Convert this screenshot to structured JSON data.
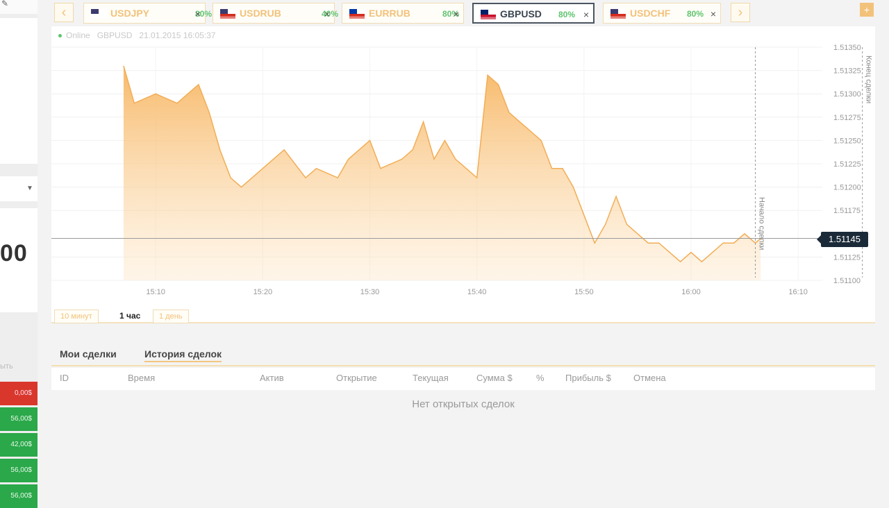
{
  "sidebar": {
    "amount": "00",
    "label": "ыть",
    "rows": [
      {
        "text": "0,00$",
        "color": "red"
      },
      {
        "text": "56,00$",
        "color": "green"
      },
      {
        "text": "42,00$",
        "color": "green"
      },
      {
        "text": "56,00$",
        "color": "green"
      },
      {
        "text": "56,00$",
        "color": "green"
      }
    ]
  },
  "tabs": [
    {
      "symbol": "USDJPY",
      "payout": "80%",
      "flag": "us-jp",
      "active": false
    },
    {
      "symbol": "USDRUB",
      "payout": "40%",
      "flag": "us-ru",
      "active": false
    },
    {
      "symbol": "EURRUB",
      "payout": "80%",
      "flag": "eu-ru",
      "active": false
    },
    {
      "symbol": "GBPUSD",
      "payout": "80%",
      "flag": "gb-us",
      "active": true
    },
    {
      "symbol": "USDCHF",
      "payout": "80%",
      "flag": "us-ch",
      "active": false
    }
  ],
  "chart_header": {
    "status": "Online",
    "symbol": "GBPUSD",
    "datetime": "21.01.2015 16:05:37"
  },
  "chart_data": {
    "type": "area",
    "y_ticks": [
      "1.51350",
      "1.51325",
      "1.51300",
      "1.51275",
      "1.51250",
      "1.51225",
      "1.51200",
      "1.51175",
      "1.51125",
      "1.51100"
    ],
    "x_ticks": [
      "15:10",
      "15:20",
      "15:30",
      "15:40",
      "15:50",
      "16:00",
      "16:10"
    ],
    "ylim": [
      1.511,
      1.5135
    ],
    "current_price": "1.51145",
    "markers": [
      {
        "label": "Начало сделки",
        "time": "16:06"
      },
      {
        "label": "Конец сделки",
        "time": "16:16"
      }
    ],
    "x_minutes_from_15_00": [
      7,
      8,
      10,
      12,
      13,
      14,
      15,
      16,
      17,
      18,
      20,
      22,
      24,
      25,
      27,
      28,
      29,
      30,
      31,
      33,
      34,
      35,
      36,
      37,
      38,
      39,
      40,
      41,
      42,
      43,
      44,
      45,
      46,
      47,
      48,
      49,
      50,
      51,
      52,
      53,
      54,
      55,
      56,
      57,
      58,
      59,
      60,
      61,
      62,
      63,
      64,
      65,
      66,
      66.5
    ],
    "values": [
      1.5133,
      1.5129,
      1.513,
      1.5129,
      1.513,
      1.5131,
      1.5128,
      1.5124,
      1.5121,
      1.512,
      1.5122,
      1.5124,
      1.5121,
      1.5122,
      1.5121,
      1.5123,
      1.5124,
      1.5125,
      1.5122,
      1.5123,
      1.5124,
      1.5127,
      1.5123,
      1.5125,
      1.5123,
      1.5122,
      1.5121,
      1.5132,
      1.5131,
      1.5128,
      1.5127,
      1.5126,
      1.5125,
      1.5122,
      1.5122,
      1.512,
      1.5117,
      1.5114,
      1.5116,
      1.5119,
      1.5116,
      1.5115,
      1.5114,
      1.5114,
      1.5113,
      1.5112,
      1.5113,
      1.5112,
      1.5113,
      1.5114,
      1.5114,
      1.5115,
      1.5114,
      1.51145
    ]
  },
  "periods": [
    {
      "label": "10 минут",
      "active": false
    },
    {
      "label": "1 час",
      "active": true
    },
    {
      "label": "1 день",
      "active": false
    }
  ],
  "trades": {
    "tabs": [
      {
        "label": "Мои сделки",
        "active": false
      },
      {
        "label": "История сделок",
        "active": true
      }
    ],
    "columns": [
      "ID",
      "Время",
      "Актив",
      "Открытие",
      "Текущая",
      "Сумма $",
      "%",
      "Прибыль $",
      "Отмена"
    ],
    "empty_text": "Нет открытых сделок"
  }
}
